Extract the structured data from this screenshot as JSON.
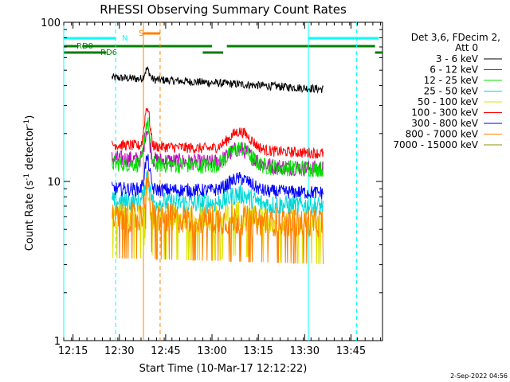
{
  "chart_data": {
    "type": "line",
    "title": "RHESSI Observing Summary Count Rates",
    "xlabel": "Start Time (10-Mar-17 12:12:22)",
    "ylabel_parts": [
      "Count Rate (s",
      "-1",
      " detector",
      "-1",
      ")"
    ],
    "ylabel": "Count Rate (s^-1 detector^-1)",
    "yscale": "log",
    "xlim_min": [
      12.2,
      13.92
    ],
    "ylim": [
      1,
      100
    ],
    "x_ticks_min": [
      12.25,
      12.5,
      12.75,
      13.0,
      13.25,
      13.5,
      13.75
    ],
    "x_tick_labels": [
      "12:15",
      "12:30",
      "12:45",
      "13:00",
      "13:15",
      "13:30",
      "13:45"
    ],
    "y_ticks": [
      1,
      10,
      100
    ],
    "y_tick_labels": [
      "1",
      "10",
      "100"
    ],
    "data_start": 12.46,
    "data_end": 13.6,
    "series": [
      {
        "name": "3 - 6 keV",
        "color": "#000000",
        "base": 45,
        "end": 38,
        "peak": 52,
        "bump": 1.0,
        "noise": 0.06
      },
      {
        "name": "6 - 12 keV",
        "color": "#c000c0",
        "base": 14,
        "end": 12,
        "peak": 22,
        "bump": 1.25,
        "noise": 0.12
      },
      {
        "name": "12 - 25 keV",
        "color": "#00e000",
        "base": 13,
        "end": 12,
        "peak": 24,
        "bump": 1.3,
        "noise": 0.12
      },
      {
        "name": "25 - 50 keV",
        "color": "#00d8d8",
        "base": 7.5,
        "end": 7,
        "peak": 11,
        "bump": 1.15,
        "noise": 0.15
      },
      {
        "name": "50 - 100 keV",
        "color": "#e0e000",
        "base": 6,
        "end": 5.5,
        "peak": 9,
        "bump": 1.1,
        "noise": 0.2
      },
      {
        "name": "100 - 300 keV",
        "color": "#ff0000",
        "base": 17,
        "end": 15,
        "peak": 30,
        "bump": 1.3,
        "noise": 0.08
      },
      {
        "name": "300 - 800 keV",
        "color": "#0000ff",
        "base": 9,
        "end": 8.5,
        "peak": 14,
        "bump": 1.2,
        "noise": 0.1
      },
      {
        "name": "800 - 7000 keV",
        "color": "#ff8000",
        "base": 6,
        "end": 5.5,
        "peak": 10,
        "bump": 1.0,
        "noise": 0.22
      },
      {
        "name": "7000 - 15000 keV",
        "color": "#909000",
        "base": 5,
        "end": 5,
        "peak": 6,
        "bump": 1.0,
        "noise": 0.0
      }
    ],
    "flare_peak_min": 12.65,
    "legend_header": [
      "Det 3,6, FDecim 2,",
      "Att 0"
    ],
    "legend_position": "right",
    "annotations": {
      "N_label": "N",
      "S_label": "S",
      "RD0_label": "RD0",
      "RD6_label": "RD6"
    },
    "flag_bars": {
      "N": [
        [
          12.2,
          12.48
        ],
        [
          13.52,
          13.9
        ]
      ],
      "S": [
        [
          12.63,
          12.72
        ]
      ],
      "RD0": [
        [
          12.2,
          12.28
        ],
        [
          12.3,
          13.0
        ],
        [
          13.08,
          13.88
        ]
      ],
      "RD6": [
        [
          12.2,
          12.43
        ],
        [
          12.95,
          13.06
        ],
        [
          13.88,
          13.92
        ]
      ]
    },
    "vlines_cyan_dashed": [
      12.48,
      13.78
    ],
    "vlines_cyan_solid": [
      12.2,
      13.52
    ],
    "vlines_orange_solid": [
      12.63
    ],
    "vlines_orange_dashed": [
      12.72
    ],
    "colors": {
      "N": "#00ffff",
      "S": "#ff8000",
      "RD0": "#008000",
      "RD6": "#008000",
      "axis": "#000000"
    },
    "timestamp": "2-Sep-2022 04:56"
  }
}
